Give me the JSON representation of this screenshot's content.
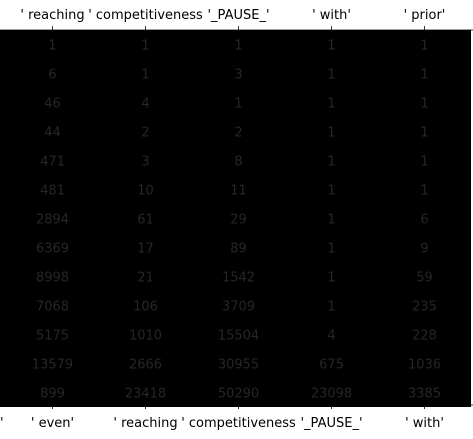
{
  "chart_data": {
    "type": "heatmap",
    "colormap": "Blues",
    "grid": false,
    "top_labels": [
      "' reaching",
      "' competitiveness",
      "'_PAUSE_'",
      "' with'",
      "' prior'"
    ],
    "bottom_labels": [
      "' even'",
      "' reaching",
      "' competitiveness",
      "'_PAUSE_'",
      "' with'"
    ],
    "bottom_left_partial_label": "'",
    "rows": [
      [
        1,
        1,
        1,
        1,
        1
      ],
      [
        6,
        1,
        3,
        1,
        1
      ],
      [
        46,
        4,
        1,
        1,
        1
      ],
      [
        44,
        2,
        2,
        1,
        1
      ],
      [
        471,
        3,
        8,
        1,
        1
      ],
      [
        481,
        10,
        11,
        1,
        1
      ],
      [
        2894,
        61,
        29,
        1,
        6
      ],
      [
        6369,
        17,
        89,
        1,
        9
      ],
      [
        8998,
        21,
        1542,
        1,
        59
      ],
      [
        7068,
        106,
        3709,
        1,
        235
      ],
      [
        5175,
        1010,
        15504,
        4,
        228
      ],
      [
        13579,
        2666,
        30955,
        675,
        1036
      ],
      [
        899,
        23418,
        50290,
        23098,
        3385
      ]
    ]
  }
}
